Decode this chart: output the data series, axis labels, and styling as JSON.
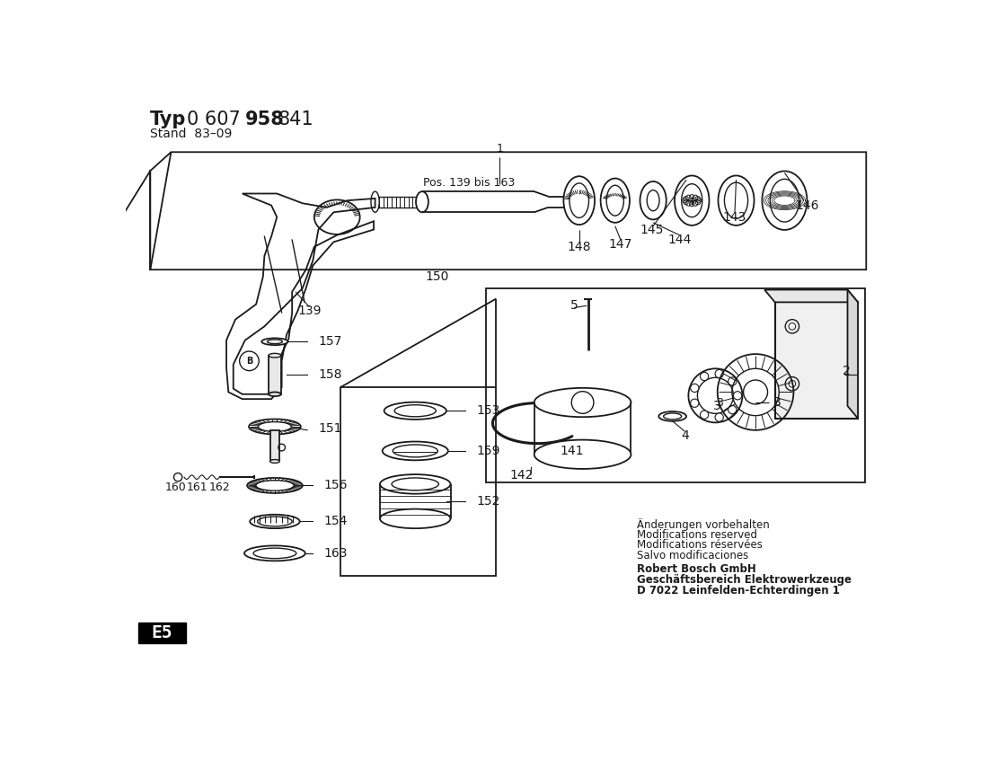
{
  "title_typ": "Typ",
  "title_num1": "0 607",
  "title_bold": "958",
  "title_end": "841",
  "stand": "Stand  83–09",
  "disclaimer_lines": [
    "Änderungen vorbehalten",
    "Modifications reserved",
    "Modifications réservées",
    "Salvo modificaciones"
  ],
  "company_lines": [
    "Robert Bosch GmbH",
    "Geschäftsbereich Elektrowerkzeuge",
    "D 7022 Leinfelden-Echterdingen 1"
  ],
  "label_e5": "E5",
  "bg_color": "#ffffff",
  "text_color": "#1a1a1a",
  "figsize": [
    11.01,
    8.46
  ],
  "dpi": 100
}
